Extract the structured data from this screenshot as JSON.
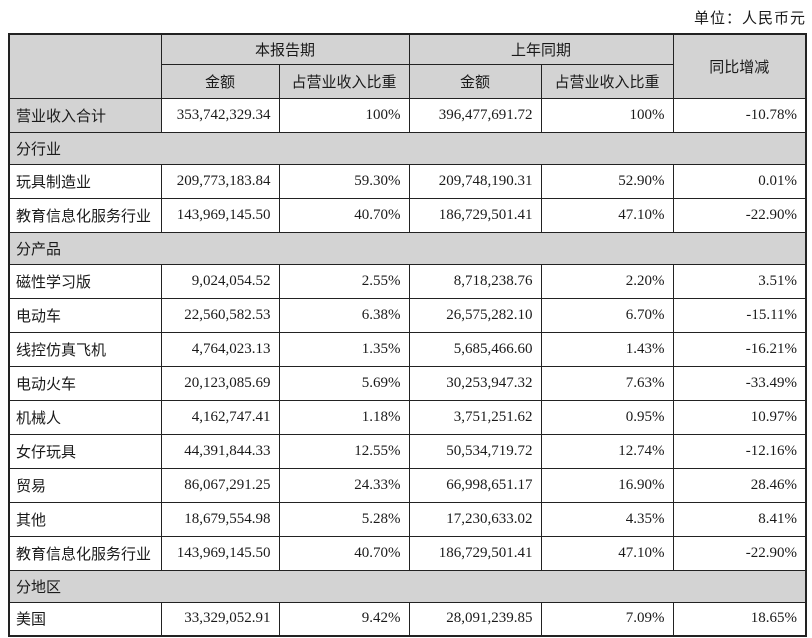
{
  "unit_label": "单位：人民币元",
  "colors": {
    "header_bg": "#d3d3d3",
    "section_bg": "#d3d3d3",
    "border": "#222222",
    "page_bg": "#ffffff"
  },
  "table": {
    "col_headers": {
      "current_period": "本报告期",
      "prior_period": "上年同期",
      "yoy_change": "同比增减",
      "amount": "金额",
      "pct_of_revenue": "占营业收入比重"
    },
    "rows": [
      {
        "type": "data",
        "label": "营业收入合计",
        "label_gray": true,
        "cur_amount": "353,742,329.34",
        "cur_pct": "100%",
        "prior_amount": "396,477,691.72",
        "prior_pct": "100%",
        "yoy": "-10.78%"
      },
      {
        "type": "section",
        "label": "分行业"
      },
      {
        "type": "data",
        "label": "玩具制造业",
        "cur_amount": "209,773,183.84",
        "cur_pct": "59.30%",
        "prior_amount": "209,748,190.31",
        "prior_pct": "52.90%",
        "yoy": "0.01%"
      },
      {
        "type": "data",
        "label": "教育信息化服务行业",
        "cur_amount": "143,969,145.50",
        "cur_pct": "40.70%",
        "prior_amount": "186,729,501.41",
        "prior_pct": "47.10%",
        "yoy": "-22.90%"
      },
      {
        "type": "section",
        "label": "分产品"
      },
      {
        "type": "data",
        "label": "磁性学习版",
        "cur_amount": "9,024,054.52",
        "cur_pct": "2.55%",
        "prior_amount": "8,718,238.76",
        "prior_pct": "2.20%",
        "yoy": "3.51%"
      },
      {
        "type": "data",
        "label": "电动车",
        "cur_amount": "22,560,582.53",
        "cur_pct": "6.38%",
        "prior_amount": "26,575,282.10",
        "prior_pct": "6.70%",
        "yoy": "-15.11%"
      },
      {
        "type": "data",
        "label": "线控仿真飞机",
        "cur_amount": "4,764,023.13",
        "cur_pct": "1.35%",
        "prior_amount": "5,685,466.60",
        "prior_pct": "1.43%",
        "yoy": "-16.21%"
      },
      {
        "type": "data",
        "label": "电动火车",
        "cur_amount": "20,123,085.69",
        "cur_pct": "5.69%",
        "prior_amount": "30,253,947.32",
        "prior_pct": "7.63%",
        "yoy": "-33.49%"
      },
      {
        "type": "data",
        "label": "机械人",
        "cur_amount": "4,162,747.41",
        "cur_pct": "1.18%",
        "prior_amount": "3,751,251.62",
        "prior_pct": "0.95%",
        "yoy": "10.97%"
      },
      {
        "type": "data",
        "label": "女仔玩具",
        "cur_amount": "44,391,844.33",
        "cur_pct": "12.55%",
        "prior_amount": "50,534,719.72",
        "prior_pct": "12.74%",
        "yoy": "-12.16%"
      },
      {
        "type": "data",
        "label": "贸易",
        "cur_amount": "86,067,291.25",
        "cur_pct": "24.33%",
        "prior_amount": "66,998,651.17",
        "prior_pct": "16.90%",
        "yoy": "28.46%"
      },
      {
        "type": "data",
        "label": "其他",
        "cur_amount": "18,679,554.98",
        "cur_pct": "5.28%",
        "prior_amount": "17,230,633.02",
        "prior_pct": "4.35%",
        "yoy": "8.41%"
      },
      {
        "type": "data",
        "label": "教育信息化服务行业",
        "cur_amount": "143,969,145.50",
        "cur_pct": "40.70%",
        "prior_amount": "186,729,501.41",
        "prior_pct": "47.10%",
        "yoy": "-22.90%"
      },
      {
        "type": "section",
        "label": "分地区"
      },
      {
        "type": "data",
        "label": "美国",
        "cur_amount": "33,329,052.91",
        "cur_pct": "9.42%",
        "prior_amount": "28,091,239.85",
        "prior_pct": "7.09%",
        "yoy": "18.65%"
      }
    ]
  }
}
